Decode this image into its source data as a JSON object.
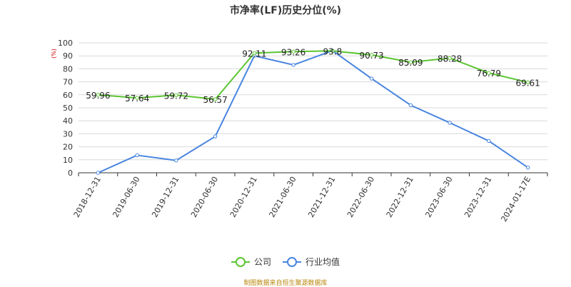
{
  "chart_data": {
    "type": "line",
    "title": "市净率(LF)历史分位(%)",
    "ylabel": "(%)",
    "xlabel": "",
    "ylim": [
      0,
      100
    ],
    "yticks": [
      0,
      10,
      20,
      30,
      40,
      50,
      60,
      70,
      80,
      90,
      100
    ],
    "categories": [
      "2018-12-31",
      "2019-06-30",
      "2019-12-31",
      "2020-06-30",
      "2020-12-31",
      "2021-06-30",
      "2021-12-31",
      "2022-06-30",
      "2022-12-31",
      "2023-06-30",
      "2023-12-31",
      "2024-01-17E"
    ],
    "grid": true,
    "legend_position": "bottom",
    "series": [
      {
        "name": "公司",
        "color": "#5cc533",
        "values": [
          59.96,
          57.64,
          59.72,
          56.57,
          92.11,
          93.26,
          93.8,
          90.73,
          85.09,
          88.28,
          76.79,
          69.61
        ],
        "labels": [
          "59.96",
          "57.64",
          "59.72",
          "56.57",
          "92.11",
          "93.26",
          "93.8",
          "90.73",
          "85.09",
          "88.28",
          "76.79",
          "69.61"
        ]
      },
      {
        "name": "行业均值",
        "color": "#4a85e0",
        "values": [
          0,
          13.5,
          9.5,
          28,
          90,
          83,
          94,
          72.5,
          52,
          38.5,
          24.5,
          4
        ]
      }
    ]
  },
  "footer": {
    "source": "制图数据来自恒生聚源数据库"
  }
}
